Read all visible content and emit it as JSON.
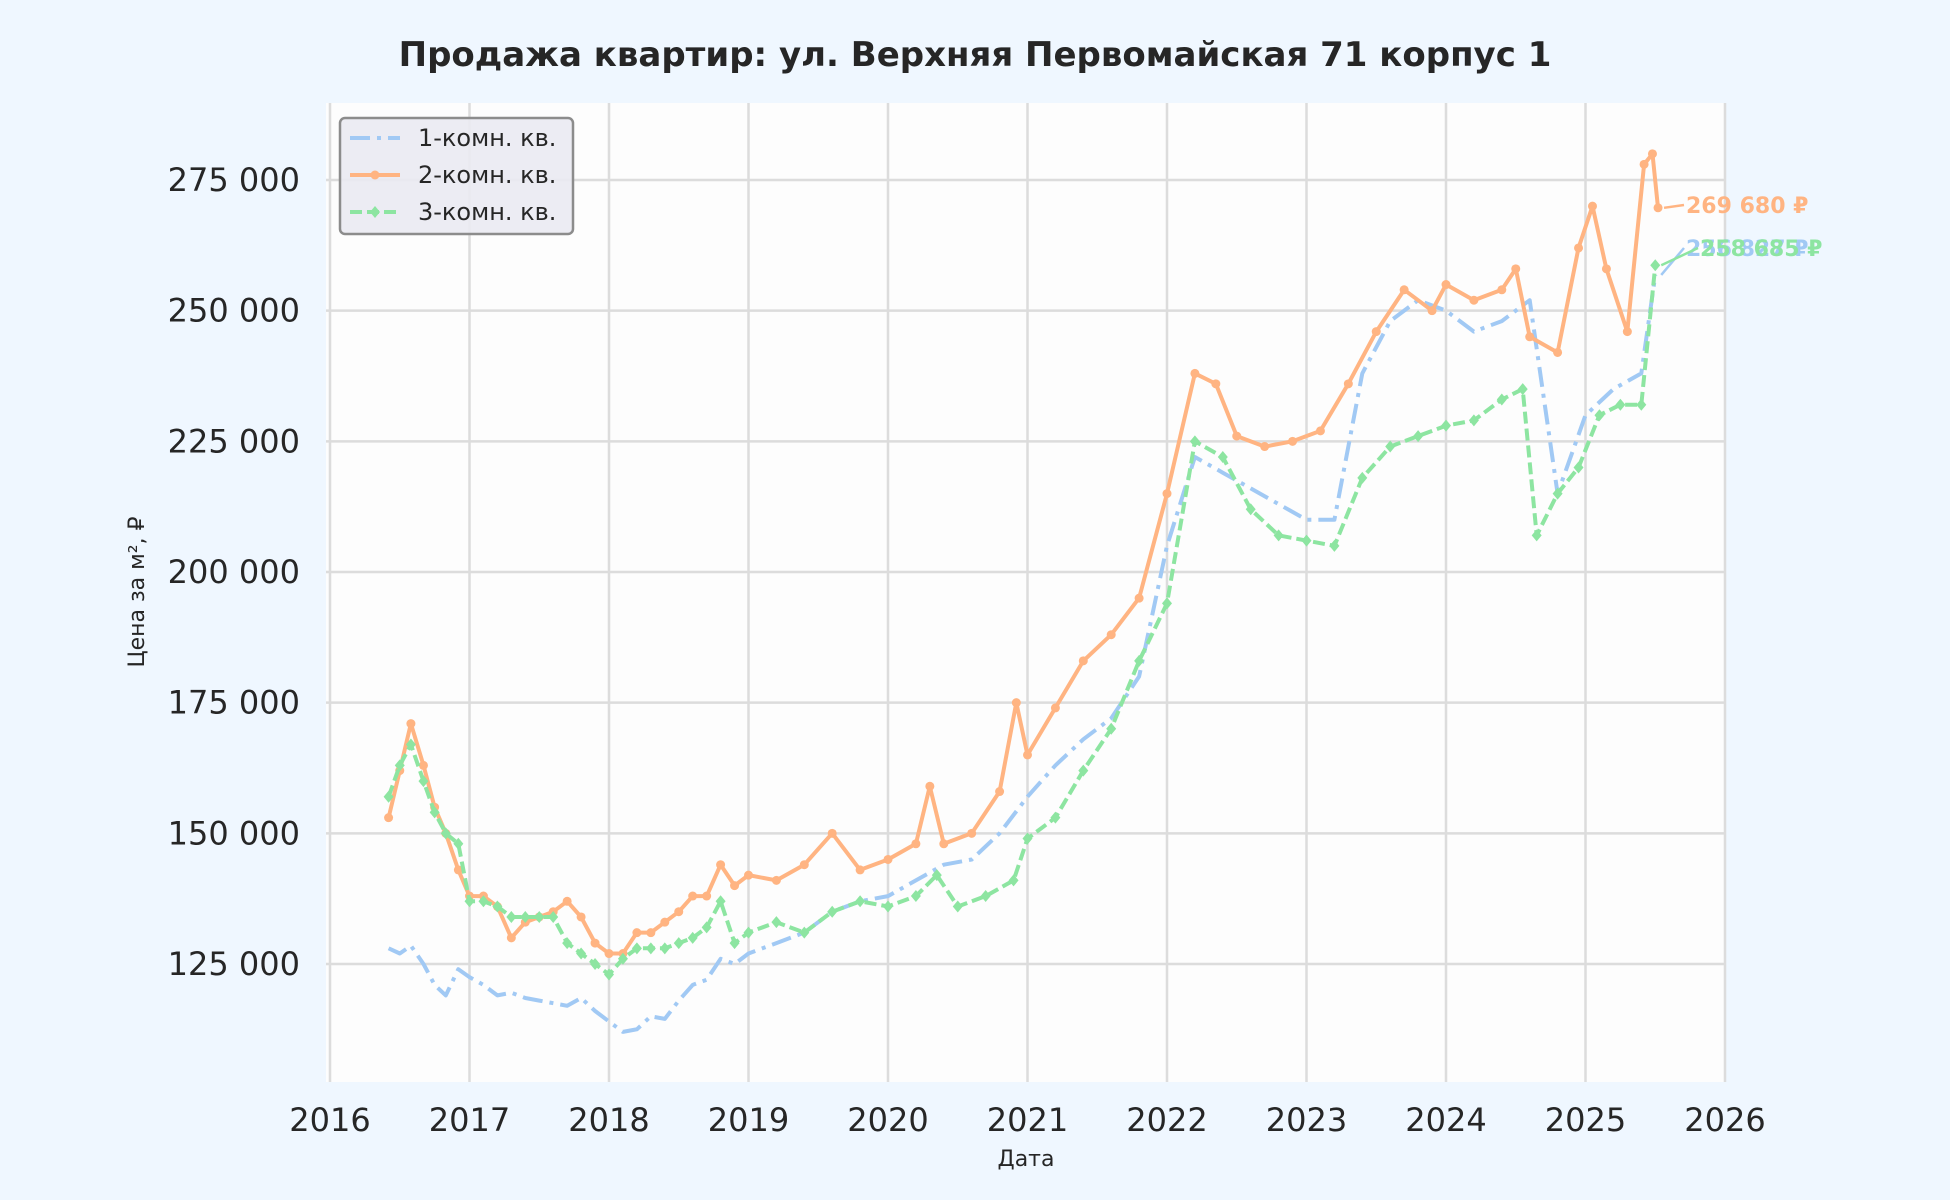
{
  "chart_data": {
    "type": "line",
    "title": "Продажа квартир: ул. Верхняя Первомайская 71 корпус 1",
    "xlabel": "Дата",
    "ylabel": "Цена за м², ₽",
    "xlim": [
      2016,
      2026
    ],
    "ylim": [
      103000,
      289000
    ],
    "x_ticks": [
      "2016",
      "2017",
      "2018",
      "2019",
      "2020",
      "2021",
      "2022",
      "2023",
      "2024",
      "2025",
      "2026"
    ],
    "y_ticks": [
      {
        "value": 125000,
        "label": "125 000"
      },
      {
        "value": 150000,
        "label": "150 000"
      },
      {
        "value": 175000,
        "label": "175 000"
      },
      {
        "value": 200000,
        "label": "200 000"
      },
      {
        "value": 225000,
        "label": "225 000"
      },
      {
        "value": 250000,
        "label": "250 000"
      },
      {
        "value": 275000,
        "label": "275 000"
      }
    ],
    "grid": true,
    "legend_position": "upper left",
    "series": [
      {
        "name": "1-комн. кв.",
        "color": "#a1c9f4",
        "style": "dashdot",
        "marker": "none",
        "end_label": "256 827 ₽",
        "x": [
          2016.42,
          2016.5,
          2016.58,
          2016.67,
          2016.75,
          2016.83,
          2016.92,
          2017.0,
          2017.1,
          2017.2,
          2017.3,
          2017.4,
          2017.5,
          2017.6,
          2017.7,
          2017.8,
          2017.9,
          2018.0,
          2018.1,
          2018.2,
          2018.3,
          2018.4,
          2018.5,
          2018.6,
          2018.7,
          2018.8,
          2018.9,
          2019.0,
          2019.2,
          2019.4,
          2019.6,
          2019.8,
          2020.0,
          2020.2,
          2020.4,
          2020.6,
          2020.8,
          2021.0,
          2021.2,
          2021.4,
          2021.6,
          2021.8,
          2022.0,
          2022.2,
          2022.4,
          2022.6,
          2022.8,
          2023.0,
          2023.2,
          2023.4,
          2023.6,
          2023.8,
          2024.0,
          2024.2,
          2024.4,
          2024.6,
          2024.8,
          2025.0,
          2025.2,
          2025.4,
          2025.5
        ],
        "values": [
          128000,
          127000,
          128500,
          125000,
          121000,
          119000,
          124000,
          122500,
          121000,
          119000,
          119500,
          118500,
          118000,
          117500,
          117000,
          118500,
          116000,
          114000,
          112000,
          112500,
          115000,
          114500,
          118000,
          121000,
          122000,
          126000,
          125000,
          127000,
          129000,
          131000,
          135000,
          137000,
          138000,
          141000,
          144000,
          145000,
          150000,
          157000,
          163000,
          168000,
          172000,
          180000,
          205000,
          222000,
          219000,
          216000,
          213000,
          210000,
          210000,
          238000,
          248000,
          252000,
          250000,
          246000,
          248000,
          252000,
          215000,
          230000,
          235000,
          238000,
          256827
        ]
      },
      {
        "name": "2-комн. кв.",
        "color": "#ffb482",
        "style": "solid",
        "marker": "circle",
        "end_label": "269 680 ₽",
        "x": [
          2016.42,
          2016.5,
          2016.58,
          2016.67,
          2016.75,
          2016.83,
          2016.92,
          2017.0,
          2017.1,
          2017.2,
          2017.3,
          2017.4,
          2017.5,
          2017.6,
          2017.7,
          2017.8,
          2017.9,
          2018.0,
          2018.1,
          2018.2,
          2018.3,
          2018.4,
          2018.5,
          2018.6,
          2018.7,
          2018.8,
          2018.9,
          2019.0,
          2019.2,
          2019.4,
          2019.6,
          2019.8,
          2020.0,
          2020.2,
          2020.3,
          2020.4,
          2020.6,
          2020.8,
          2020.92,
          2021.0,
          2021.2,
          2021.4,
          2021.6,
          2021.8,
          2022.0,
          2022.2,
          2022.35,
          2022.5,
          2022.7,
          2022.9,
          2023.1,
          2023.3,
          2023.5,
          2023.7,
          2023.9,
          2024.0,
          2024.2,
          2024.4,
          2024.5,
          2024.6,
          2024.8,
          2024.95,
          2025.05,
          2025.15,
          2025.3,
          2025.42,
          2025.48,
          2025.52
        ],
        "values": [
          153000,
          162000,
          171000,
          163000,
          155000,
          150000,
          143000,
          138000,
          138000,
          136000,
          130000,
          133000,
          134000,
          135000,
          137000,
          134000,
          129000,
          127000,
          127000,
          131000,
          131000,
          133000,
          135000,
          138000,
          138000,
          144000,
          140000,
          142000,
          141000,
          144000,
          150000,
          143000,
          145000,
          148000,
          159000,
          148000,
          150000,
          158000,
          175000,
          165000,
          174000,
          183000,
          188000,
          195000,
          215000,
          238000,
          236000,
          226000,
          224000,
          225000,
          227000,
          236000,
          246000,
          254000,
          250000,
          255000,
          252000,
          254000,
          258000,
          245000,
          242000,
          262000,
          270000,
          258000,
          246000,
          278000,
          280000,
          269680
        ]
      },
      {
        "name": "3-комн. кв.",
        "color": "#8de5a1",
        "style": "dashed",
        "marker": "diamond",
        "end_label": "258 685 ₽",
        "x": [
          2016.42,
          2016.5,
          2016.58,
          2016.67,
          2016.75,
          2016.83,
          2016.92,
          2017.0,
          2017.1,
          2017.2,
          2017.3,
          2017.4,
          2017.5,
          2017.6,
          2017.7,
          2017.8,
          2017.9,
          2018.0,
          2018.1,
          2018.2,
          2018.3,
          2018.4,
          2018.5,
          2018.6,
          2018.7,
          2018.8,
          2018.9,
          2019.0,
          2019.2,
          2019.4,
          2019.6,
          2019.8,
          2020.0,
          2020.2,
          2020.35,
          2020.5,
          2020.7,
          2020.9,
          2021.0,
          2021.2,
          2021.4,
          2021.6,
          2021.8,
          2022.0,
          2022.2,
          2022.4,
          2022.6,
          2022.8,
          2023.0,
          2023.2,
          2023.4,
          2023.6,
          2023.8,
          2024.0,
          2024.2,
          2024.4,
          2024.55,
          2024.65,
          2024.8,
          2024.95,
          2025.1,
          2025.25,
          2025.4,
          2025.5
        ],
        "values": [
          157000,
          163000,
          167000,
          160000,
          154000,
          150000,
          148000,
          137000,
          137000,
          136000,
          134000,
          134000,
          134000,
          134000,
          129000,
          127000,
          125000,
          123000,
          126000,
          128000,
          128000,
          128000,
          129000,
          130000,
          132000,
          137000,
          129000,
          131000,
          133000,
          131000,
          135000,
          137000,
          136000,
          138000,
          142000,
          136000,
          138000,
          141000,
          149000,
          153000,
          162000,
          170000,
          183000,
          194000,
          225000,
          222000,
          212000,
          207000,
          206000,
          205000,
          218000,
          224000,
          226000,
          228000,
          229000,
          233000,
          235000,
          207000,
          215000,
          220000,
          230000,
          232000,
          232000,
          258685
        ]
      }
    ]
  }
}
